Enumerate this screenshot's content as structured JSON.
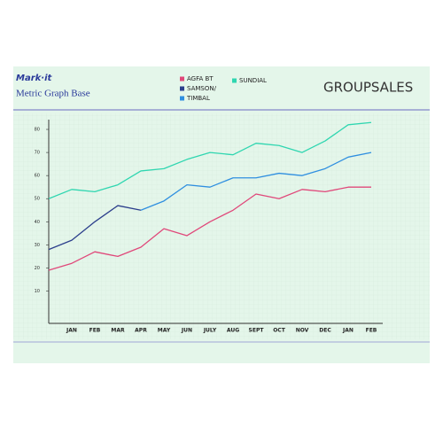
{
  "chart_data": {
    "type": "line",
    "brand": "Mark·it",
    "title": "Metric Graph Base",
    "annotation": "GROUPSALES",
    "categories": [
      null,
      "JAN",
      "FEB",
      "MAR",
      "APR",
      "MAY",
      "JUN",
      "JULY",
      "AUG",
      "SEPT",
      "OCT",
      "NOV",
      "DEC",
      "JAN",
      "FEB"
    ],
    "series": [
      {
        "name": "AGFA BT",
        "color": "#e0487a",
        "values": [
          19,
          22,
          27,
          25,
          29,
          37,
          34,
          40,
          45,
          52,
          50,
          54,
          53,
          55,
          55
        ]
      },
      {
        "name": "SAMSON/",
        "color": "#2c3f8c",
        "values": [
          28,
          32,
          40,
          47,
          45,
          null,
          null,
          null,
          null,
          null,
          null,
          null,
          null,
          null,
          null
        ]
      },
      {
        "name": "TIMBAL",
        "color": "#2f8fe0",
        "values": [
          null,
          null,
          null,
          null,
          45,
          49,
          56,
          55,
          59,
          59,
          61,
          60,
          63,
          68,
          70
        ]
      },
      {
        "name": "SUNDIAL",
        "color": "#2fd6b0",
        "values": [
          50,
          54,
          53,
          56,
          62,
          63,
          67,
          70,
          69,
          74,
          73,
          70,
          75,
          82,
          83
        ]
      }
    ],
    "ylim": [
      -4,
      85
    ],
    "yticks": [
      10,
      20,
      30,
      40,
      50,
      60,
      70,
      80
    ]
  }
}
